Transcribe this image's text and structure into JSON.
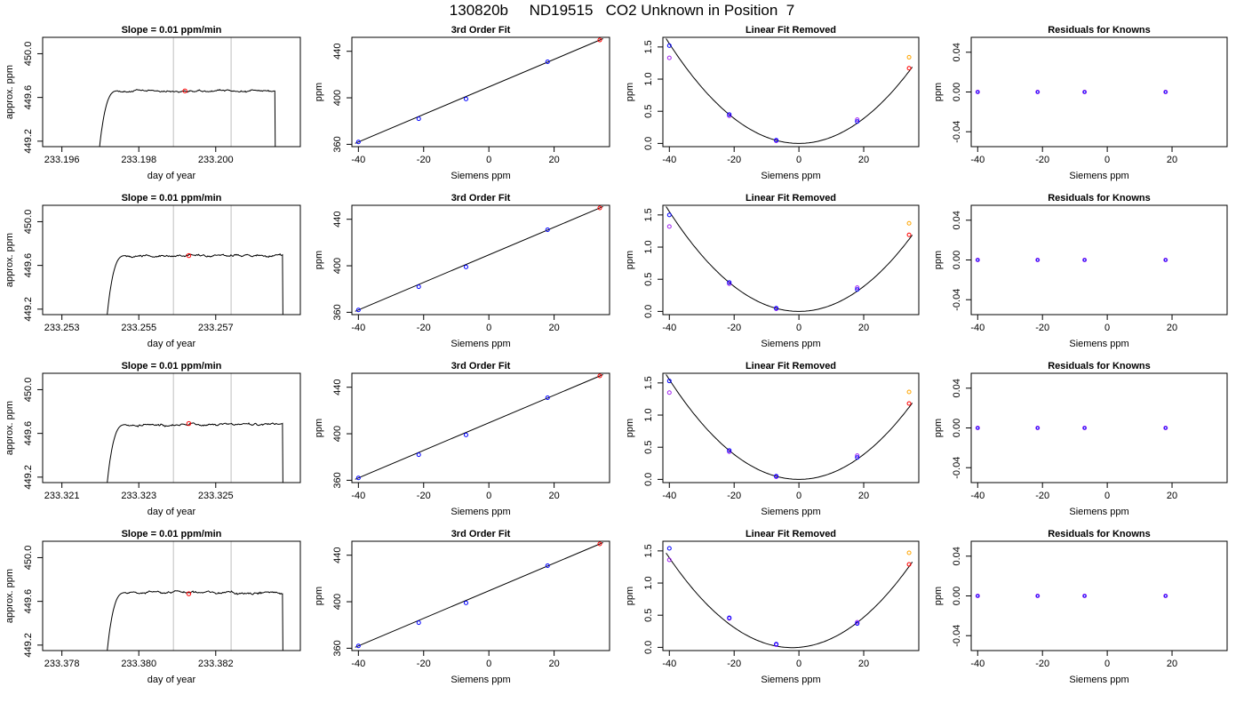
{
  "page_title": "130820b     ND19515   CO2 Unknown in Position  7",
  "chart_data": [
    {
      "row": 1,
      "panels": [
        {
          "kind": "timeseries",
          "type": "line",
          "title": "Slope =  0.01  ppm/min",
          "xlabel": "day of year",
          "ylabel": "approx. ppm",
          "xlim": [
            233.1955,
            233.2022
          ],
          "ylim": [
            449.15,
            450.15
          ],
          "xticks": [
            233.196,
            233.198,
            233.2
          ],
          "xticklabels": [
            "233.196",
            "233.198",
            "233.200"
          ],
          "yticks": [
            449.2,
            449.6,
            450.0
          ],
          "yticklabels": [
            "449.2",
            "449.6",
            "450.0"
          ],
          "series_start": 233.1969,
          "series_end": 233.2016,
          "plateau": 449.66,
          "noise": 0.012,
          "vlines": [
            233.1989,
            233.2004
          ],
          "marker": {
            "x": 233.1992,
            "y": 449.66
          }
        },
        {
          "kind": "fit",
          "type": "scatter",
          "title": "3rd Order Fit",
          "xlabel": "Siemens ppm",
          "ylabel": "ppm",
          "xlim": [
            -42,
            37
          ],
          "ylim": [
            358,
            452
          ],
          "xticks": [
            -40,
            -20,
            0,
            20
          ],
          "yticks": [
            360,
            400,
            440
          ],
          "points": [
            {
              "x": -40,
              "y": 362
            },
            {
              "x": -21.5,
              "y": 382
            },
            {
              "x": -7,
              "y": 399
            },
            {
              "x": 18,
              "y": 431
            }
          ],
          "unknown": {
            "x": 34,
            "y": 449.66
          }
        },
        {
          "kind": "linfit",
          "type": "scatter",
          "title": "Linear Fit Removed",
          "xlabel": "Siemens ppm",
          "ylabel": "ppm",
          "xlim": [
            -42,
            37
          ],
          "ylim": [
            -0.05,
            1.65
          ],
          "xticks": [
            -40,
            -20,
            0,
            20
          ],
          "yticks": [
            0.0,
            0.5,
            1.0,
            1.5
          ],
          "yticklabels": [
            "0.0",
            "0.5",
            "1.0",
            "1.5"
          ],
          "curve": {
            "a": 0.00097,
            "b": 0.0,
            "c": 0.0
          },
          "points_blue": [
            {
              "x": -40,
              "y": 1.52
            },
            {
              "x": -21.5,
              "y": 0.45
            },
            {
              "x": -7,
              "y": 0.05
            },
            {
              "x": 18,
              "y": 0.34
            }
          ],
          "points_purple": [
            {
              "x": -40,
              "y": 1.33
            },
            {
              "x": -21.5,
              "y": 0.43
            },
            {
              "x": -7,
              "y": 0.04
            },
            {
              "x": 18,
              "y": 0.37
            }
          ],
          "unknown_orange": {
            "x": 34,
            "y": 1.34
          },
          "unknown_red": {
            "x": 34,
            "y": 1.17
          }
        },
        {
          "kind": "resid",
          "type": "scatter",
          "title": "Residuals for Knowns",
          "xlabel": "Siemens ppm",
          "ylabel": "ppm",
          "xlim": [
            -42,
            37
          ],
          "ylim": [
            -0.055,
            0.055
          ],
          "xticks": [
            -40,
            -20,
            0,
            20
          ],
          "yticks": [
            -0.04,
            0.0,
            0.04
          ],
          "yticklabels": [
            "-0.04",
            "0.00",
            "0.04"
          ],
          "points": [
            {
              "x": -40,
              "y": 0
            },
            {
              "x": -21.5,
              "y": 0
            },
            {
              "x": -7,
              "y": 0
            },
            {
              "x": 18,
              "y": 0
            }
          ]
        }
      ]
    },
    {
      "row": 2,
      "panels": [
        {
          "kind": "timeseries",
          "type": "line",
          "title": "Slope =  0.01  ppm/min",
          "xlabel": "day of year",
          "ylabel": "approx. ppm",
          "xlim": [
            233.2525,
            233.2592
          ],
          "ylim": [
            449.15,
            450.15
          ],
          "xticks": [
            233.253,
            233.255,
            233.257
          ],
          "xticklabels": [
            "233.253",
            "233.255",
            "233.257"
          ],
          "yticks": [
            449.2,
            449.6,
            450.0
          ],
          "yticklabels": [
            "449.2",
            "449.6",
            "450.0"
          ],
          "series_start": 233.2541,
          "series_end": 233.2588,
          "plateau": 449.69,
          "noise": 0.013,
          "vlines": [
            233.2559,
            233.2574
          ],
          "marker": {
            "x": 233.2563,
            "y": 449.69
          }
        },
        {
          "kind": "fit",
          "type": "scatter",
          "title": "3rd Order Fit",
          "xlabel": "Siemens ppm",
          "ylabel": "ppm",
          "xlim": [
            -42,
            37
          ],
          "ylim": [
            358,
            452
          ],
          "xticks": [
            -40,
            -20,
            0,
            20
          ],
          "yticks": [
            360,
            400,
            440
          ],
          "points": [
            {
              "x": -40,
              "y": 362
            },
            {
              "x": -21.5,
              "y": 382
            },
            {
              "x": -7,
              "y": 399
            },
            {
              "x": 18,
              "y": 431
            }
          ],
          "unknown": {
            "x": 34,
            "y": 449.69
          }
        },
        {
          "kind": "linfit",
          "type": "scatter",
          "title": "Linear Fit Removed",
          "xlabel": "Siemens ppm",
          "ylabel": "ppm",
          "xlim": [
            -42,
            37
          ],
          "ylim": [
            -0.05,
            1.65
          ],
          "xticks": [
            -40,
            -20,
            0,
            20
          ],
          "yticks": [
            0.0,
            0.5,
            1.0,
            1.5
          ],
          "yticklabels": [
            "0.0",
            "0.5",
            "1.0",
            "1.5"
          ],
          "curve": {
            "a": 0.00097,
            "b": 0.0,
            "c": 0.0
          },
          "points_blue": [
            {
              "x": -40,
              "y": 1.5
            },
            {
              "x": -21.5,
              "y": 0.45
            },
            {
              "x": -7,
              "y": 0.05
            },
            {
              "x": 18,
              "y": 0.34
            }
          ],
          "points_purple": [
            {
              "x": -40,
              "y": 1.32
            },
            {
              "x": -21.5,
              "y": 0.43
            },
            {
              "x": -7,
              "y": 0.04
            },
            {
              "x": 18,
              "y": 0.37
            }
          ],
          "unknown_orange": {
            "x": 34,
            "y": 1.37
          },
          "unknown_red": {
            "x": 34,
            "y": 1.19
          }
        },
        {
          "kind": "resid",
          "type": "scatter",
          "title": "Residuals for Knowns",
          "xlabel": "Siemens ppm",
          "ylabel": "ppm",
          "xlim": [
            -42,
            37
          ],
          "ylim": [
            -0.055,
            0.055
          ],
          "xticks": [
            -40,
            -20,
            0,
            20
          ],
          "yticks": [
            -0.04,
            0.0,
            0.04
          ],
          "yticklabels": [
            "-0.04",
            "0.00",
            "0.04"
          ],
          "points": [
            {
              "x": -40,
              "y": 0
            },
            {
              "x": -21.5,
              "y": 0
            },
            {
              "x": -7,
              "y": 0
            },
            {
              "x": 18,
              "y": 0
            }
          ]
        }
      ]
    },
    {
      "row": 3,
      "panels": [
        {
          "kind": "timeseries",
          "type": "line",
          "title": "Slope =  0.01  ppm/min",
          "xlabel": "day of year",
          "ylabel": "approx. ppm",
          "xlim": [
            233.3205,
            233.3272
          ],
          "ylim": [
            449.15,
            450.15
          ],
          "xticks": [
            233.321,
            233.323,
            233.325
          ],
          "xticklabels": [
            "233.321",
            "233.323",
            "233.325"
          ],
          "yticks": [
            449.2,
            449.6,
            450.0
          ],
          "yticklabels": [
            "449.2",
            "449.6",
            "450.0"
          ],
          "series_start": 233.3221,
          "series_end": 233.3268,
          "plateau": 449.68,
          "noise": 0.014,
          "vlines": [
            233.3239,
            233.3254
          ],
          "marker": {
            "x": 233.3243,
            "y": 449.69
          }
        },
        {
          "kind": "fit",
          "type": "scatter",
          "title": "3rd Order Fit",
          "xlabel": "Siemens ppm",
          "ylabel": "ppm",
          "xlim": [
            -42,
            37
          ],
          "ylim": [
            358,
            452
          ],
          "xticks": [
            -40,
            -20,
            0,
            20
          ],
          "yticks": [
            360,
            400,
            440
          ],
          "points": [
            {
              "x": -40,
              "y": 362
            },
            {
              "x": -21.5,
              "y": 382
            },
            {
              "x": -7,
              "y": 399
            },
            {
              "x": 18,
              "y": 431
            }
          ],
          "unknown": {
            "x": 34,
            "y": 449.68
          }
        },
        {
          "kind": "linfit",
          "type": "scatter",
          "title": "Linear Fit Removed",
          "xlabel": "Siemens ppm",
          "ylabel": "ppm",
          "xlim": [
            -42,
            37
          ],
          "ylim": [
            -0.05,
            1.65
          ],
          "xticks": [
            -40,
            -20,
            0,
            20
          ],
          "yticks": [
            0.0,
            0.5,
            1.0,
            1.5
          ],
          "yticklabels": [
            "0.0",
            "0.5",
            "1.0",
            "1.5"
          ],
          "curve": {
            "a": 0.00097,
            "b": 0.0,
            "c": 0.0
          },
          "points_blue": [
            {
              "x": -40,
              "y": 1.53
            },
            {
              "x": -21.5,
              "y": 0.45
            },
            {
              "x": -7,
              "y": 0.05
            },
            {
              "x": 18,
              "y": 0.34
            }
          ],
          "points_purple": [
            {
              "x": -40,
              "y": 1.35
            },
            {
              "x": -21.5,
              "y": 0.43
            },
            {
              "x": -7,
              "y": 0.04
            },
            {
              "x": 18,
              "y": 0.37
            }
          ],
          "unknown_orange": {
            "x": 34,
            "y": 1.36
          },
          "unknown_red": {
            "x": 34,
            "y": 1.18
          }
        },
        {
          "kind": "resid",
          "type": "scatter",
          "title": "Residuals for Knowns",
          "xlabel": "Siemens ppm",
          "ylabel": "ppm",
          "xlim": [
            -42,
            37
          ],
          "ylim": [
            -0.055,
            0.055
          ],
          "xticks": [
            -40,
            -20,
            0,
            20
          ],
          "yticks": [
            -0.04,
            0.0,
            0.04
          ],
          "yticklabels": [
            "-0.04",
            "0.00",
            "0.04"
          ],
          "points": [
            {
              "x": -40,
              "y": 0
            },
            {
              "x": -21.5,
              "y": 0
            },
            {
              "x": -7,
              "y": 0
            },
            {
              "x": 18,
              "y": 0
            }
          ]
        }
      ]
    },
    {
      "row": 4,
      "panels": [
        {
          "kind": "timeseries",
          "type": "line",
          "title": "Slope =  0.01  ppm/min",
          "xlabel": "day of year",
          "ylabel": "approx. ppm",
          "xlim": [
            233.3775,
            233.3842
          ],
          "ylim": [
            449.15,
            450.15
          ],
          "xticks": [
            233.378,
            233.38,
            233.382
          ],
          "xticklabels": [
            "233.378",
            "233.380",
            "233.382"
          ],
          "yticks": [
            449.2,
            449.6,
            450.0
          ],
          "yticklabels": [
            "449.2",
            "449.6",
            "450.0"
          ],
          "series_start": 233.3791,
          "series_end": 233.3838,
          "plateau": 449.68,
          "noise": 0.014,
          "vlines": [
            233.3809,
            233.3824
          ],
          "marker": {
            "x": 233.3813,
            "y": 449.67
          }
        },
        {
          "kind": "fit",
          "type": "scatter",
          "title": "3rd Order Fit",
          "xlabel": "Siemens ppm",
          "ylabel": "ppm",
          "xlim": [
            -42,
            37
          ],
          "ylim": [
            358,
            452
          ],
          "xticks": [
            -40,
            -20,
            0,
            20
          ],
          "yticks": [
            360,
            400,
            440
          ],
          "points": [
            {
              "x": -40,
              "y": 362
            },
            {
              "x": -21.5,
              "y": 382
            },
            {
              "x": -7,
              "y": 399
            },
            {
              "x": 18,
              "y": 431
            }
          ],
          "unknown": {
            "x": 34,
            "y": 449.68
          }
        },
        {
          "kind": "linfit",
          "type": "scatter",
          "title": "Linear Fit Removed",
          "xlabel": "Siemens ppm",
          "ylabel": "ppm",
          "xlim": [
            -42,
            37
          ],
          "ylim": [
            -0.05,
            1.65
          ],
          "xticks": [
            -40,
            -20,
            0,
            20
          ],
          "yticks": [
            0.0,
            0.5,
            1.0,
            1.5
          ],
          "yticklabels": [
            "0.0",
            "0.5",
            "1.0",
            "1.5"
          ],
          "curve": {
            "a": 0.00097,
            "b": 0.004,
            "c": 0.0
          },
          "points_blue": [
            {
              "x": -40,
              "y": 1.54
            },
            {
              "x": -21.5,
              "y": 0.46
            },
            {
              "x": -7,
              "y": 0.05
            },
            {
              "x": 18,
              "y": 0.37
            }
          ],
          "points_purple": [
            {
              "x": -40,
              "y": 1.36
            },
            {
              "x": -21.5,
              "y": 0.45
            },
            {
              "x": -7,
              "y": 0.04
            },
            {
              "x": 18,
              "y": 0.39
            }
          ],
          "unknown_orange": {
            "x": 34,
            "y": 1.47
          },
          "unknown_red": {
            "x": 34,
            "y": 1.29
          }
        },
        {
          "kind": "resid",
          "type": "scatter",
          "title": "Residuals for Knowns",
          "xlabel": "Siemens ppm",
          "ylabel": "ppm",
          "xlim": [
            -42,
            37
          ],
          "ylim": [
            -0.055,
            0.055
          ],
          "xticks": [
            -40,
            -20,
            0,
            20
          ],
          "yticks": [
            -0.04,
            0.0,
            0.04
          ],
          "yticklabels": [
            "-0.04",
            "0.00",
            "0.04"
          ],
          "points": [
            {
              "x": -40,
              "y": 0
            },
            {
              "x": -21.5,
              "y": 0
            },
            {
              "x": -7,
              "y": 0
            },
            {
              "x": 18,
              "y": 0
            }
          ]
        }
      ]
    }
  ],
  "colors": {
    "line": "#000000",
    "known_blue": "#0000ff",
    "known_purple": "#a020f0",
    "unknown_red": "#ff0000",
    "unknown_orange": "#ffa500",
    "vline": "#bebebe"
  }
}
